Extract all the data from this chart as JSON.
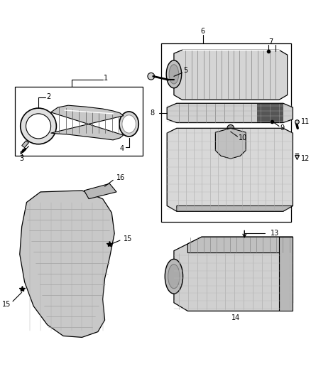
{
  "bg_color": "#ffffff",
  "line_color": "#000000",
  "fig_width": 4.38,
  "fig_height": 5.33,
  "dpi": 100,
  "gray_light": "#d8d8d8",
  "gray_mid": "#b0b0b0",
  "gray_dark": "#888888",
  "gray_fill": "#c8c8c8"
}
